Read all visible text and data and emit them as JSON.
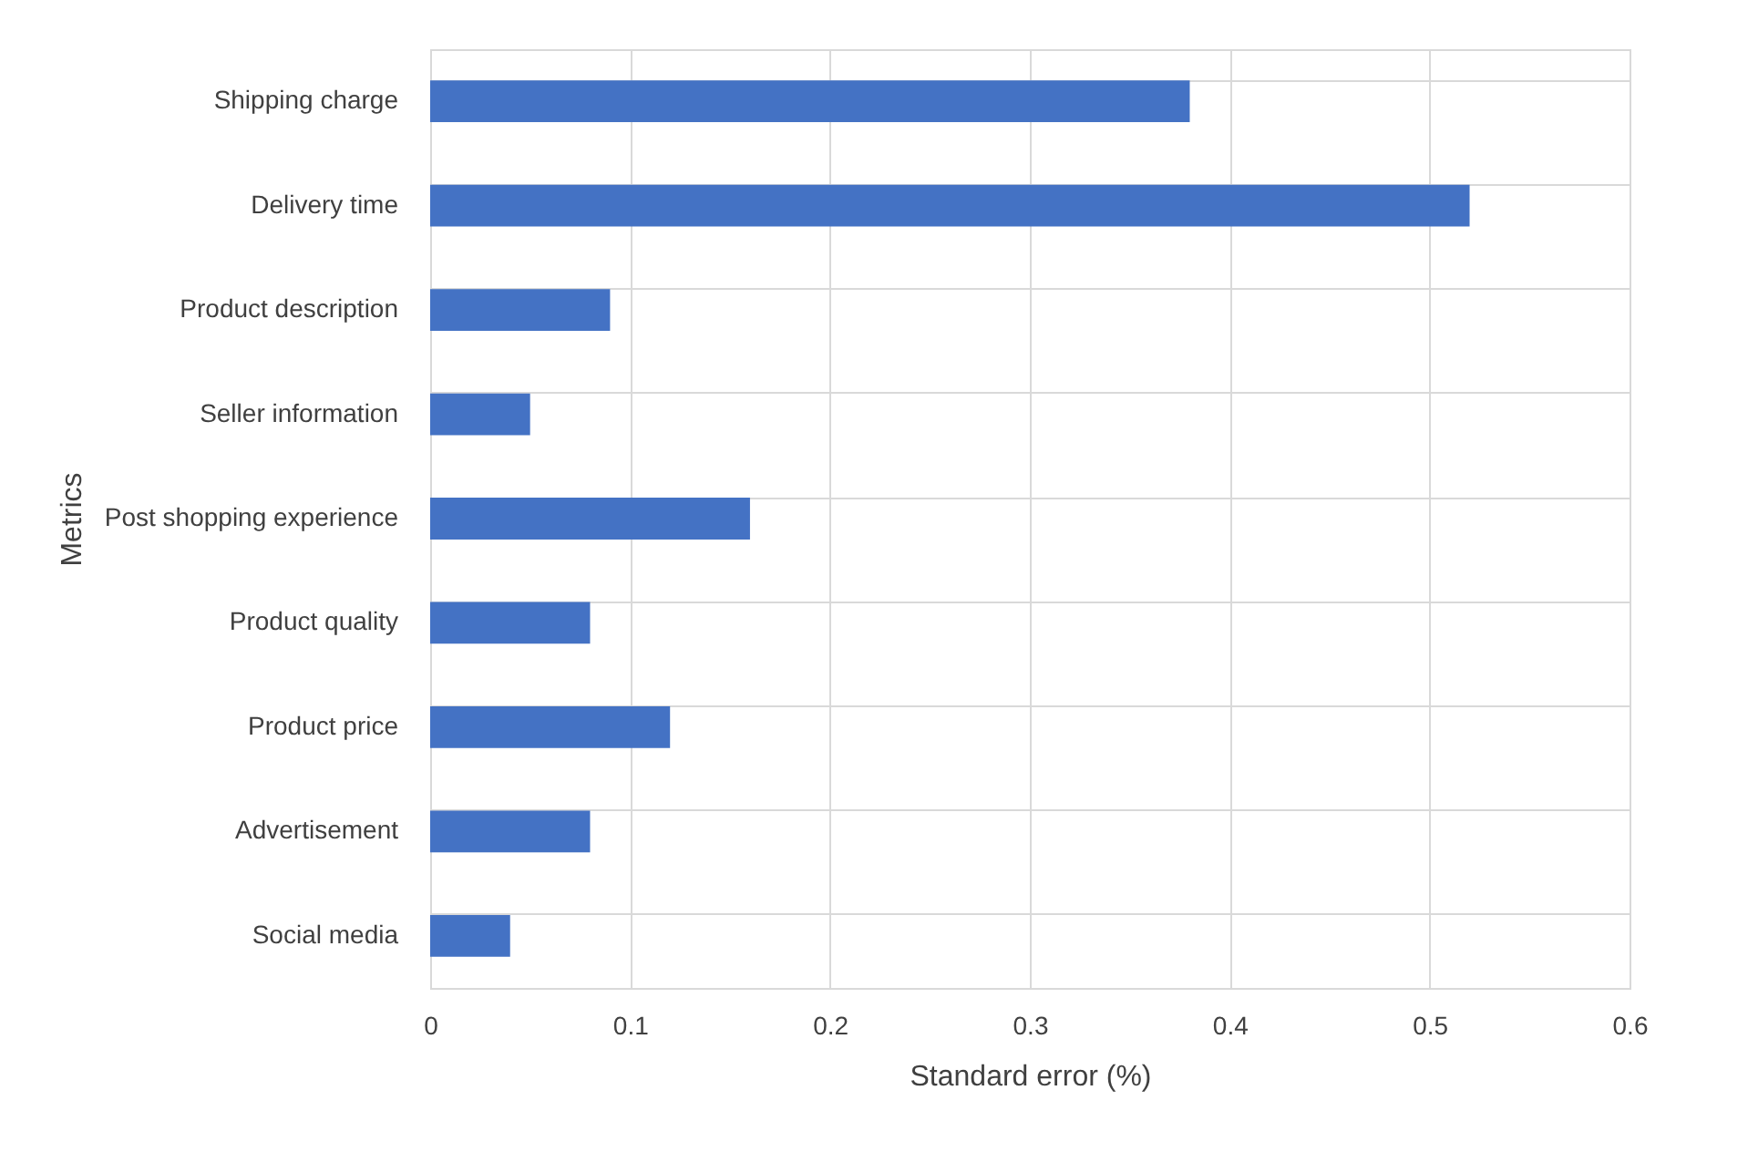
{
  "chart_data": {
    "type": "bar",
    "orientation": "horizontal",
    "xlabel": "Standard error (%)",
    "ylabel": "Metrics",
    "categories": [
      "Shipping charge",
      "Delivery time",
      "Product description",
      "Seller information",
      "Post shopping experience",
      "Product quality",
      "Product price",
      "Advertisement",
      "Social media"
    ],
    "values": [
      0.38,
      0.52,
      0.09,
      0.05,
      0.16,
      0.08,
      0.12,
      0.08,
      0.04
    ],
    "color": "#4472c4",
    "xlim": [
      0,
      0.6
    ],
    "xticks": [
      0,
      0.1,
      0.2,
      0.3,
      0.4,
      0.5,
      0.6
    ],
    "grid": true
  }
}
